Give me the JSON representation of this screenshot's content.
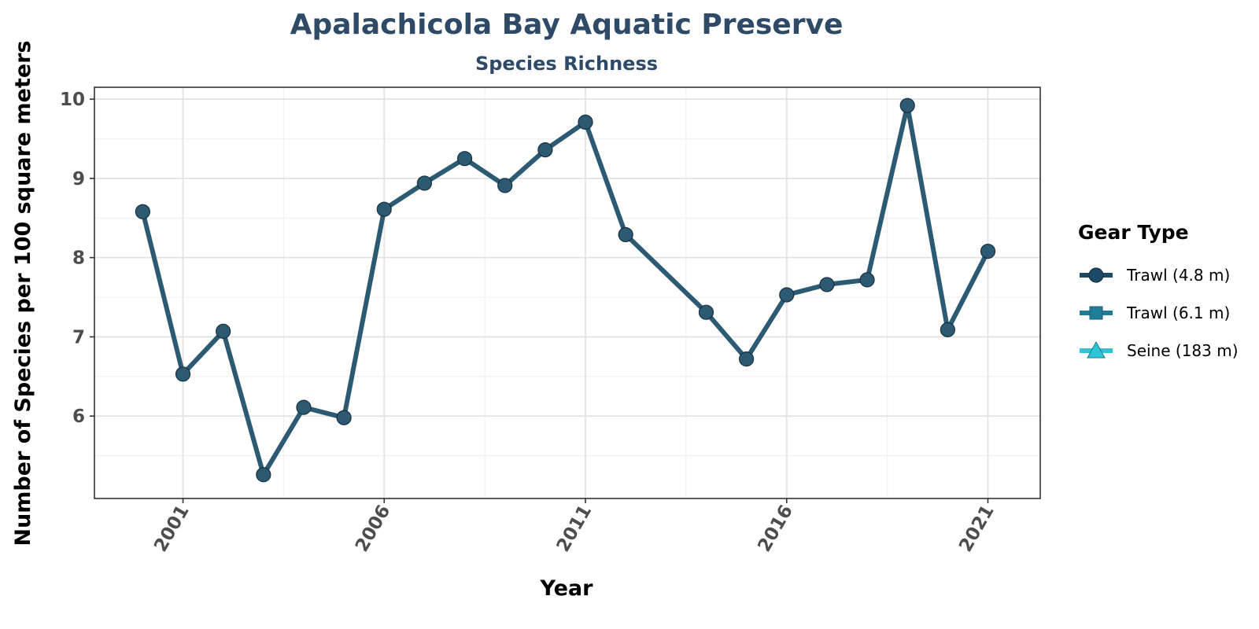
{
  "chart_data": {
    "type": "line",
    "title": "Apalachicola Bay Aquatic Preserve",
    "subtitle": "Species Richness",
    "xlabel": "Year",
    "ylabel": "Number of Species per 100 square meters",
    "xlim": [
      1998.8,
      2022.3
    ],
    "ylim": [
      4.96,
      10.15
    ],
    "x_ticks": [
      2001,
      2006,
      2011,
      2016,
      2021
    ],
    "x_tick_labels": [
      "2001",
      "2006",
      "2011",
      "2016",
      "2021"
    ],
    "y_ticks": [
      6,
      7,
      8,
      9,
      10
    ],
    "y_tick_labels": [
      "6",
      "7",
      "8",
      "9",
      "10"
    ],
    "grid": true,
    "legend": {
      "title": "Gear Type",
      "position": "right",
      "entries": [
        {
          "label": "Trawl (4.8 m)",
          "marker": "circle",
          "color": "#1b4a66"
        },
        {
          "label": "Trawl (6.1 m)",
          "marker": "square",
          "color": "#1f7d99"
        },
        {
          "label": "Seine (183 m)",
          "marker": "triangle",
          "color": "#2ec4d6"
        }
      ]
    },
    "series": [
      {
        "name": "Trawl (4.8 m)",
        "color": "#2c5a72",
        "x": [
          2000,
          2001,
          2002,
          2003,
          2004,
          2005,
          2006,
          2007,
          2008,
          2009,
          2010,
          2011,
          2012,
          2014,
          2015,
          2016,
          2017,
          2018,
          2019,
          2020,
          2021
        ],
        "y": [
          8.58,
          6.53,
          7.07,
          5.26,
          6.11,
          5.98,
          8.61,
          8.94,
          9.25,
          8.91,
          9.36,
          9.71,
          8.29,
          7.31,
          6.72,
          7.53,
          7.66,
          7.72,
          9.92,
          7.09,
          8.08
        ]
      }
    ]
  }
}
